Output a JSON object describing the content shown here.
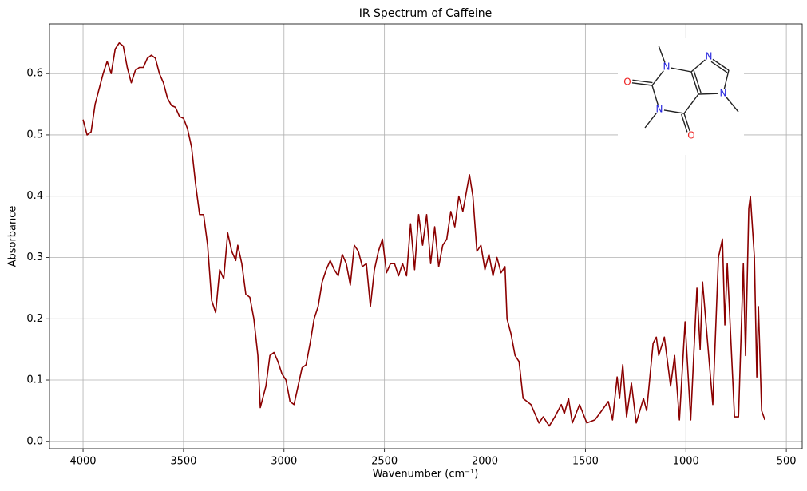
{
  "chart_data": {
    "type": "line",
    "title": "IR Spectrum of Caffeine",
    "xlabel": "Wavenumber (cm⁻¹)",
    "ylabel": "Absorbance",
    "color": "#8b0000",
    "grid": true,
    "xlim": [
      4167,
      421
    ],
    "ylim": [
      -0.012,
      0.681
    ],
    "xticks": [
      4000,
      3500,
      3000,
      2500,
      2000,
      1500,
      1000,
      500
    ],
    "yticks": [
      {
        "value": 0,
        "label": "0.0"
      },
      0.1,
      0.2,
      0.3,
      0.4,
      0.5,
      0.6
    ],
    "annotations": [
      "N",
      "N",
      "N",
      "N",
      "O",
      "O"
    ],
    "x": [
      4000,
      3980,
      3960,
      3940,
      3900,
      3880,
      3860,
      3840,
      3820,
      3800,
      3780,
      3760,
      3740,
      3720,
      3700,
      3680,
      3660,
      3640,
      3620,
      3600,
      3580,
      3560,
      3540,
      3520,
      3500,
      3480,
      3460,
      3440,
      3420,
      3400,
      3380,
      3360,
      3340,
      3320,
      3300,
      3280,
      3260,
      3240,
      3230,
      3210,
      3190,
      3170,
      3150,
      3130,
      3118,
      3090,
      3070,
      3050,
      3030,
      3010,
      2990,
      2970,
      2950,
      2930,
      2910,
      2890,
      2870,
      2850,
      2830,
      2810,
      2790,
      2770,
      2750,
      2730,
      2710,
      2690,
      2670,
      2650,
      2630,
      2610,
      2590,
      2570,
      2550,
      2530,
      2510,
      2490,
      2470,
      2450,
      2430,
      2410,
      2390,
      2370,
      2350,
      2330,
      2310,
      2290,
      2270,
      2250,
      2230,
      2210,
      2190,
      2170,
      2150,
      2130,
      2110,
      2077,
      2060,
      2040,
      2020,
      2000,
      1980,
      1960,
      1940,
      1920,
      1900,
      1890,
      1870,
      1850,
      1840,
      1830,
      1810,
      1771,
      1731,
      1710,
      1680,
      1652,
      1620,
      1605,
      1584,
      1565,
      1529,
      1493,
      1453,
      1430,
      1386,
      1365,
      1342,
      1330,
      1314,
      1295,
      1271,
      1247,
      1211,
      1195,
      1163,
      1147,
      1135,
      1107,
      1076,
      1056,
      1032,
      1004,
      976,
      945,
      929,
      917,
      866,
      838,
      818,
      806,
      794,
      758,
      738,
      714,
      703,
      687,
      679,
      659,
      647,
      639,
      623,
      607
    ],
    "values": [
      0.525,
      0.5,
      0.505,
      0.55,
      0.6,
      0.62,
      0.6,
      0.64,
      0.65,
      0.645,
      0.61,
      0.585,
      0.605,
      0.61,
      0.61,
      0.625,
      0.63,
      0.625,
      0.6,
      0.585,
      0.56,
      0.548,
      0.545,
      0.53,
      0.527,
      0.51,
      0.48,
      0.42,
      0.37,
      0.37,
      0.32,
      0.23,
      0.21,
      0.28,
      0.265,
      0.34,
      0.31,
      0.295,
      0.32,
      0.29,
      0.24,
      0.235,
      0.2,
      0.14,
      0.055,
      0.09,
      0.14,
      0.145,
      0.13,
      0.11,
      0.1,
      0.065,
      0.06,
      0.09,
      0.12,
      0.125,
      0.16,
      0.2,
      0.22,
      0.26,
      0.28,
      0.295,
      0.28,
      0.27,
      0.305,
      0.29,
      0.255,
      0.32,
      0.31,
      0.285,
      0.29,
      0.22,
      0.28,
      0.31,
      0.33,
      0.275,
      0.29,
      0.29,
      0.27,
      0.29,
      0.27,
      0.355,
      0.28,
      0.37,
      0.32,
      0.37,
      0.29,
      0.35,
      0.285,
      0.32,
      0.33,
      0.375,
      0.35,
      0.4,
      0.375,
      0.435,
      0.4,
      0.31,
      0.32,
      0.28,
      0.305,
      0.27,
      0.3,
      0.275,
      0.285,
      0.2,
      0.175,
      0.14,
      0.135,
      0.13,
      0.07,
      0.06,
      0.03,
      0.04,
      0.025,
      0.04,
      0.06,
      0.045,
      0.07,
      0.03,
      0.06,
      0.03,
      0.035,
      0.045,
      0.065,
      0.035,
      0.105,
      0.07,
      0.125,
      0.04,
      0.095,
      0.03,
      0.07,
      0.05,
      0.16,
      0.17,
      0.14,
      0.17,
      0.09,
      0.14,
      0.035,
      0.195,
      0.035,
      0.25,
      0.15,
      0.26,
      0.06,
      0.3,
      0.33,
      0.19,
      0.29,
      0.04,
      0.04,
      0.29,
      0.14,
      0.38,
      0.4,
      0.3,
      0.105,
      0.22,
      0.05,
      0.035
    ]
  }
}
